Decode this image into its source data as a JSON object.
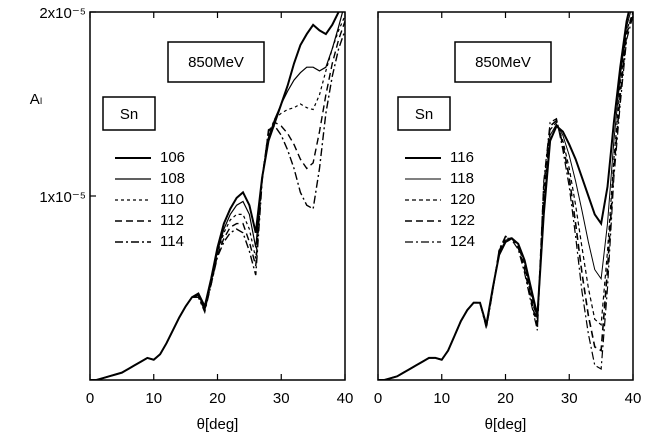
{
  "chart_data": [
    {
      "type": "line",
      "xlabel": "θ[deg]",
      "ylabel": "Aₗ",
      "energy": "850MeV",
      "nucleus": "Sn",
      "xlim": [
        0,
        40
      ],
      "ylim": [
        0,
        2e-05
      ],
      "xticks": [
        0,
        10,
        20,
        30,
        40
      ],
      "yticks": [
        {
          "value": 2e-05,
          "label": "2x10⁻⁵"
        },
        {
          "value": 1e-05,
          "label": "1x10⁻⁵"
        }
      ],
      "x": [
        0,
        1,
        2,
        3,
        4,
        5,
        6,
        7,
        8,
        9,
        10,
        11,
        12,
        13,
        14,
        15,
        16,
        17,
        18,
        19,
        20,
        21,
        22,
        23,
        24,
        25,
        26,
        27,
        28,
        29,
        30,
        31,
        32,
        33,
        34,
        35,
        36,
        37,
        38,
        39,
        40
      ],
      "series": [
        {
          "name": "106",
          "color": "#000000",
          "line_width": 2,
          "dash": "none",
          "values": [
            0,
            0,
            1e-07,
            2e-07,
            3e-07,
            4e-07,
            6e-07,
            8e-07,
            1e-06,
            1.2e-06,
            1.1e-06,
            1.4e-06,
            2e-06,
            2.7e-06,
            3.4e-06,
            4e-06,
            4.5e-06,
            4.7e-06,
            4e-06,
            5.5e-06,
            7.2e-06,
            8.5e-06,
            9.3e-06,
            9.9e-06,
            1.02e-05,
            9.5e-06,
            8e-06,
            1.1e-05,
            1.3e-05,
            1.4e-05,
            1.5e-05,
            1.6e-05,
            1.72e-05,
            1.82e-05,
            1.88e-05,
            1.93e-05,
            1.9e-05,
            1.88e-05,
            1.93e-05,
            2e-05,
            2.1e-05
          ]
        },
        {
          "name": "108",
          "color": "#000000",
          "line_width": 1.2,
          "dash": "none",
          "values": [
            0,
            0,
            1e-07,
            2e-07,
            3e-07,
            4e-07,
            6e-07,
            8e-07,
            1e-06,
            1.2e-06,
            1.1e-06,
            1.4e-06,
            2e-06,
            2.7e-06,
            3.4e-06,
            4e-06,
            4.5e-06,
            4.6e-06,
            3.9e-06,
            5.4e-06,
            7e-06,
            8.2e-06,
            9e-06,
            9.5e-06,
            9.7e-06,
            9e-06,
            7.2e-06,
            1.1e-05,
            1.32e-05,
            1.42e-05,
            1.5e-05,
            1.57e-05,
            1.63e-05,
            1.67e-05,
            1.7e-05,
            1.7e-05,
            1.68e-05,
            1.7e-05,
            1.8e-05,
            1.92e-05,
            2.05e-05
          ]
        },
        {
          "name": "110",
          "color": "#000000",
          "line_width": 1.2,
          "dash": "3,3",
          "values": [
            0,
            0,
            1e-07,
            2e-07,
            3e-07,
            4e-07,
            6e-07,
            8e-07,
            1e-06,
            1.2e-06,
            1.1e-06,
            1.4e-06,
            2e-06,
            2.7e-06,
            3.4e-06,
            4e-06,
            4.5e-06,
            4.6e-06,
            3.8e-06,
            5.3e-06,
            6.9e-06,
            8e-06,
            8.7e-06,
            9e-06,
            9e-06,
            8.2e-06,
            6.6e-06,
            1.1e-05,
            1.34e-05,
            1.42e-05,
            1.45e-05,
            1.47e-05,
            1.48e-05,
            1.5e-05,
            1.48e-05,
            1.47e-05,
            1.55e-05,
            1.68e-05,
            1.8e-05,
            1.9e-05,
            1.98e-05
          ]
        },
        {
          "name": "112",
          "color": "#000000",
          "line_width": 1.4,
          "dash": "7,4",
          "values": [
            0,
            0,
            1e-07,
            2e-07,
            3e-07,
            4e-07,
            6e-07,
            8e-07,
            1e-06,
            1.2e-06,
            1.1e-06,
            1.4e-06,
            2e-06,
            2.7e-06,
            3.4e-06,
            4e-06,
            4.5e-06,
            4.5e-06,
            3.8e-06,
            5.2e-06,
            6.8e-06,
            7.7e-06,
            8.3e-06,
            8.5e-06,
            8.5e-06,
            7.5e-06,
            6.2e-06,
            1.1e-05,
            1.35e-05,
            1.4e-05,
            1.38e-05,
            1.34e-05,
            1.28e-05,
            1.2e-05,
            1.15e-05,
            1.18e-05,
            1.35e-05,
            1.55e-05,
            1.72e-05,
            1.85e-05,
            1.95e-05
          ]
        },
        {
          "name": "114",
          "color": "#000000",
          "line_width": 1.4,
          "dash": "8,3,2,3",
          "values": [
            0,
            0,
            1e-07,
            2e-07,
            3e-07,
            4e-07,
            6e-07,
            8e-07,
            1e-06,
            1.2e-06,
            1.1e-06,
            1.4e-06,
            2e-06,
            2.7e-06,
            3.4e-06,
            4e-06,
            4.5e-06,
            4.5e-06,
            3.7e-06,
            5.2e-06,
            6.7e-06,
            7.5e-06,
            8e-06,
            8.2e-06,
            8e-06,
            7e-06,
            5.7e-06,
            1.08e-05,
            1.36e-05,
            1.38e-05,
            1.33e-05,
            1.25e-05,
            1.15e-05,
            1.02e-05,
            9.5e-06,
            9.3e-06,
            1.15e-05,
            1.45e-05,
            1.65e-05,
            1.8e-05,
            1.9e-05
          ]
        }
      ]
    },
    {
      "type": "line",
      "xlabel": "θ[deg]",
      "energy": "850MeV",
      "nucleus": "Sn",
      "xlim": [
        0,
        40
      ],
      "ylim": [
        0,
        2e-05
      ],
      "xticks": [
        0,
        10,
        20,
        30,
        40
      ],
      "x": [
        0,
        1,
        2,
        3,
        4,
        5,
        6,
        7,
        8,
        9,
        10,
        11,
        12,
        13,
        14,
        15,
        16,
        17,
        18,
        19,
        20,
        21,
        22,
        23,
        24,
        25,
        26,
        27,
        28,
        29,
        30,
        31,
        32,
        33,
        34,
        35,
        36,
        37,
        38,
        39,
        40
      ],
      "series": [
        {
          "name": "116",
          "color": "#000000",
          "line_width": 2,
          "dash": "none",
          "values": [
            0,
            0,
            1e-07,
            2e-07,
            4e-07,
            6e-07,
            8e-07,
            1e-06,
            1.2e-06,
            1.2e-06,
            1.1e-06,
            1.6e-06,
            2.4e-06,
            3.2e-06,
            3.8e-06,
            4.2e-06,
            4.2e-06,
            3e-06,
            5e-06,
            6.8e-06,
            7.5e-06,
            7.7e-06,
            7.4e-06,
            6.5e-06,
            5e-06,
            3.5e-06,
            9e-06,
            1.3e-05,
            1.38e-05,
            1.35e-05,
            1.28e-05,
            1.2e-05,
            1.1e-05,
            1e-05,
            9e-06,
            8.5e-06,
            1.05e-05,
            1.4e-05,
            1.7e-05,
            1.95e-05,
            2.1e-05
          ]
        },
        {
          "name": "118",
          "color": "#000000",
          "line_width": 1,
          "dash": "none",
          "values": [
            0,
            0,
            1e-07,
            2e-07,
            4e-07,
            6e-07,
            8e-07,
            1e-06,
            1.2e-06,
            1.2e-06,
            1.1e-06,
            1.6e-06,
            2.4e-06,
            3.2e-06,
            3.8e-06,
            4.2e-06,
            4.2e-06,
            3e-06,
            5e-06,
            6.9e-06,
            7.6e-06,
            7.7e-06,
            7.4e-06,
            6.4e-06,
            4.8e-06,
            3.3e-06,
            9.5e-06,
            1.33e-05,
            1.39e-05,
            1.33e-05,
            1.22e-05,
            1.08e-05,
            9.2e-06,
            7.5e-06,
            6e-06,
            5.5e-06,
            8.5e-06,
            1.3e-05,
            1.65e-05,
            1.92e-05,
            2.05e-05
          ]
        },
        {
          "name": "120",
          "color": "#000000",
          "line_width": 1.2,
          "dash": "4,3",
          "values": [
            0,
            0,
            1e-07,
            2e-07,
            4e-07,
            6e-07,
            8e-07,
            1e-06,
            1.2e-06,
            1.2e-06,
            1.1e-06,
            1.6e-06,
            2.4e-06,
            3.2e-06,
            3.8e-06,
            4.2e-06,
            4.2e-06,
            2.9e-06,
            4.9e-06,
            7e-06,
            7.7e-06,
            7.7e-06,
            7.3e-06,
            6.2e-06,
            4.6e-06,
            3.1e-06,
            1e-05,
            1.36e-05,
            1.4e-05,
            1.3e-05,
            1.15e-05,
            9.5e-06,
            7.2e-06,
            5e-06,
            3.3e-06,
            3e-06,
            7e-06,
            1.2e-05,
            1.6e-05,
            1.9e-05,
            2e-05
          ]
        },
        {
          "name": "122",
          "color": "#000000",
          "line_width": 1.6,
          "dash": "7,4",
          "values": [
            0,
            0,
            1e-07,
            2e-07,
            4e-07,
            6e-07,
            8e-07,
            1e-06,
            1.2e-06,
            1.2e-06,
            1.1e-06,
            1.6e-06,
            2.4e-06,
            3.2e-06,
            3.8e-06,
            4.2e-06,
            4.2e-06,
            2.9e-06,
            4.9e-06,
            7e-06,
            7.8e-06,
            7.7e-06,
            7.2e-06,
            6e-06,
            4.4e-06,
            2.9e-06,
            1.05e-05,
            1.38e-05,
            1.41e-05,
            1.28e-05,
            1.1e-05,
            8.5e-06,
            5.8e-06,
            3.5e-06,
            1.8e-06,
            1.6e-06,
            6e-06,
            1.15e-05,
            1.55e-05,
            1.88e-05,
            2e-05
          ]
        },
        {
          "name": "124",
          "color": "#000000",
          "line_width": 1.2,
          "dash": "8,3,2,3",
          "values": [
            0,
            0,
            1e-07,
            2e-07,
            4e-07,
            6e-07,
            8e-07,
            1e-06,
            1.2e-06,
            1.2e-06,
            1.1e-06,
            1.6e-06,
            2.4e-06,
            3.2e-06,
            3.8e-06,
            4.2e-06,
            4.2e-06,
            2.8e-06,
            4.8e-06,
            7.1e-06,
            7.8e-06,
            7.6e-06,
            7.1e-06,
            5.8e-06,
            4.2e-06,
            2.7e-06,
            1.08e-05,
            1.4e-05,
            1.42e-05,
            1.25e-05,
            1.05e-05,
            7.8e-06,
            4.8e-06,
            2.5e-06,
            8e-07,
            6e-07,
            5e-06,
            1.1e-05,
            1.5e-05,
            1.85e-05,
            1.98e-05
          ]
        }
      ]
    }
  ]
}
